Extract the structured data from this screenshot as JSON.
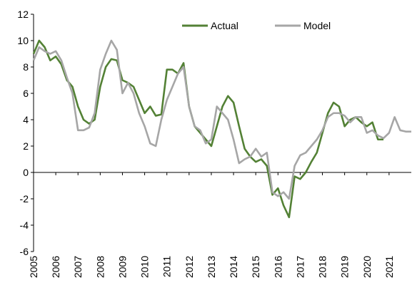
{
  "chart_data": {
    "type": "line",
    "x": [
      2005,
      2005.25,
      2005.5,
      2005.75,
      2006,
      2006.25,
      2006.5,
      2006.75,
      2007,
      2007.25,
      2007.5,
      2007.75,
      2008,
      2008.25,
      2008.5,
      2008.75,
      2009,
      2009.25,
      2009.5,
      2009.75,
      2010,
      2010.25,
      2010.5,
      2010.75,
      2011,
      2011.25,
      2011.5,
      2011.75,
      2012,
      2012.25,
      2012.5,
      2012.75,
      2013,
      2013.25,
      2013.5,
      2013.75,
      2014,
      2014.25,
      2014.5,
      2014.75,
      2015,
      2015.25,
      2015.5,
      2015.75,
      2016,
      2016.25,
      2016.5,
      2016.75,
      2017,
      2017.25,
      2017.5,
      2017.75,
      2018,
      2018.25,
      2018.5,
      2018.75,
      2019,
      2019.25,
      2019.5,
      2019.75,
      2020,
      2020.25,
      2020.5,
      2020.75,
      2021,
      2021.25,
      2021.5,
      2021.75,
      2022
    ],
    "series": [
      {
        "name": "Actual",
        "color": "#538135",
        "values": [
          9,
          10,
          9.5,
          8.5,
          8.8,
          8.2,
          7,
          6.5,
          5,
          4,
          3.7,
          4,
          6.5,
          8,
          8.6,
          8.5,
          7,
          6.8,
          6.5,
          5.5,
          4.5,
          5,
          4.3,
          4.4,
          7.8,
          7.8,
          7.5,
          8.3,
          5,
          3.5,
          3,
          2.5,
          2,
          3.5,
          5,
          5.8,
          5.3,
          3.5,
          1.8,
          1.2,
          0.8,
          1,
          0.5,
          -1.7,
          -1.2,
          -2.5,
          -3.4,
          -0.3,
          -0.5,
          0,
          0.8,
          1.5,
          3,
          4.5,
          5.3,
          5,
          3.5,
          4,
          4.2,
          3.8,
          3.5,
          3.8,
          2.5,
          2.5,
          null,
          null,
          null,
          null,
          null
        ]
      },
      {
        "name": "Model",
        "color": "#a6a6a6",
        "values": [
          8.5,
          9.5,
          9.2,
          9,
          9.2,
          8.5,
          7.2,
          6,
          3.2,
          3.2,
          3.4,
          4.5,
          7.8,
          9,
          10,
          9.3,
          6,
          6.8,
          6,
          4.5,
          3.5,
          2.2,
          2,
          4,
          5.5,
          6.5,
          7.5,
          8,
          5,
          3.5,
          3.2,
          2.2,
          2.5,
          5,
          4.5,
          4,
          2.5,
          0.7,
          1,
          1.2,
          1.8,
          1.2,
          1.5,
          -1.5,
          -1.8,
          -1.5,
          -2,
          0.5,
          1.3,
          1.5,
          2,
          2.5,
          3.2,
          4.2,
          4.5,
          4.5,
          4.3,
          3.8,
          4.2,
          4.2,
          3,
          3.2,
          2.8,
          2.6,
          3,
          4.2,
          3.2,
          3.1,
          3.1
        ]
      }
    ],
    "xlim": [
      2005,
      2022
    ],
    "xticks": [
      2005,
      2006,
      2007,
      2008,
      2009,
      2010,
      2011,
      2012,
      2013,
      2014,
      2015,
      2016,
      2017,
      2018,
      2019,
      2020,
      2021
    ],
    "ylim": [
      -6,
      12
    ],
    "yticks": [
      -6,
      -4,
      -2,
      0,
      2,
      4,
      6,
      8,
      10,
      12
    ],
    "legend": "top"
  }
}
